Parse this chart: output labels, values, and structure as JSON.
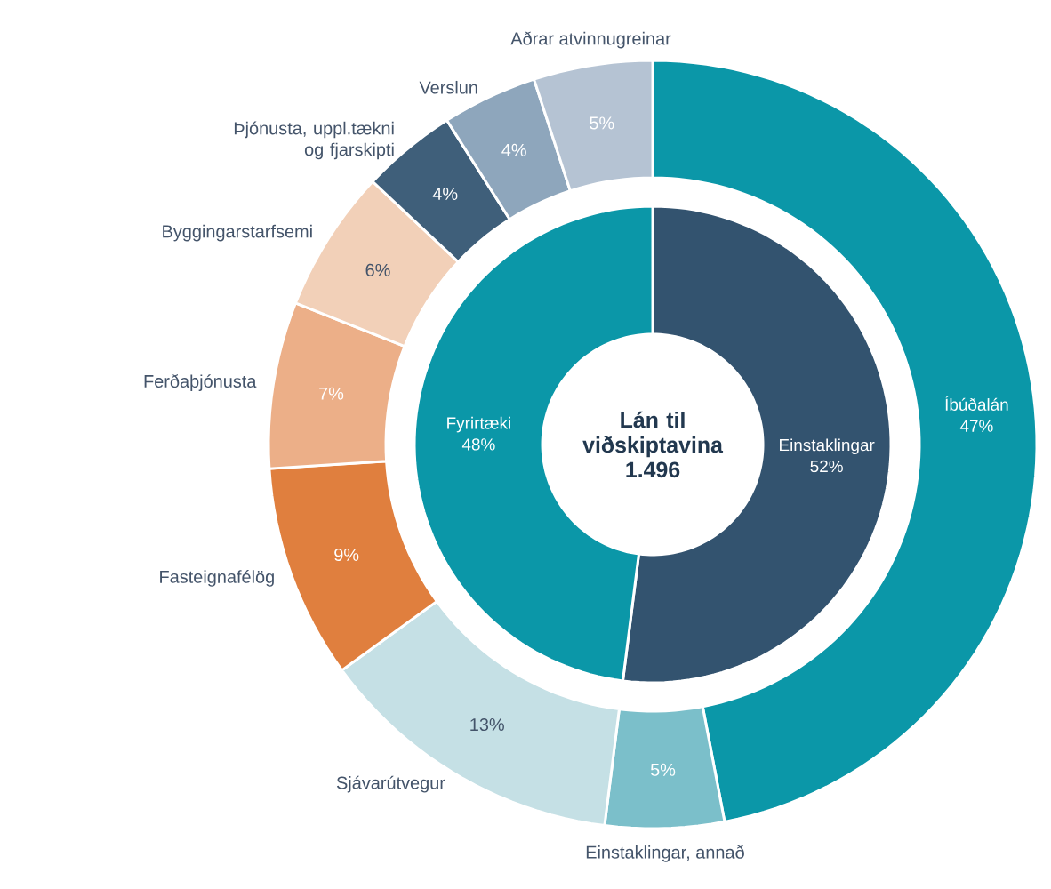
{
  "chart_data": [
    {
      "type": "donut",
      "title": "Lán til viðskiptavina 1.496",
      "categories": [
        "Einstaklingar",
        "Fyrirtæki"
      ],
      "values": [
        52,
        48
      ],
      "value_labels": [
        "52%",
        "48%"
      ],
      "colors": [
        "#33536f",
        "#0b97a8"
      ]
    },
    {
      "type": "donut",
      "categories": [
        "Íbúðalán",
        "Einstaklingar, annað",
        "Sjávarútvegur",
        "Fasteignafélög",
        "Ferðaþjónusta",
        "Byggingarstarfsemi",
        "Þjónusta, uppl.tækni og fjarskipti",
        "Verslun",
        "Aðrar atvinnugreinar"
      ],
      "values": [
        47,
        5,
        13,
        9,
        7,
        6,
        4,
        4,
        5
      ],
      "value_labels": [
        "47%",
        "5%",
        "13%",
        "9%",
        "7%",
        "6%",
        "4%",
        "4%",
        "5%"
      ],
      "colors": [
        "#0b97a8",
        "#7bbfca",
        "#c5e0e5",
        "#e07f3e",
        "#ecaf88",
        "#f2d0b8",
        "#3f5f7a",
        "#8ea6bc",
        "#b5c3d3"
      ]
    }
  ]
}
